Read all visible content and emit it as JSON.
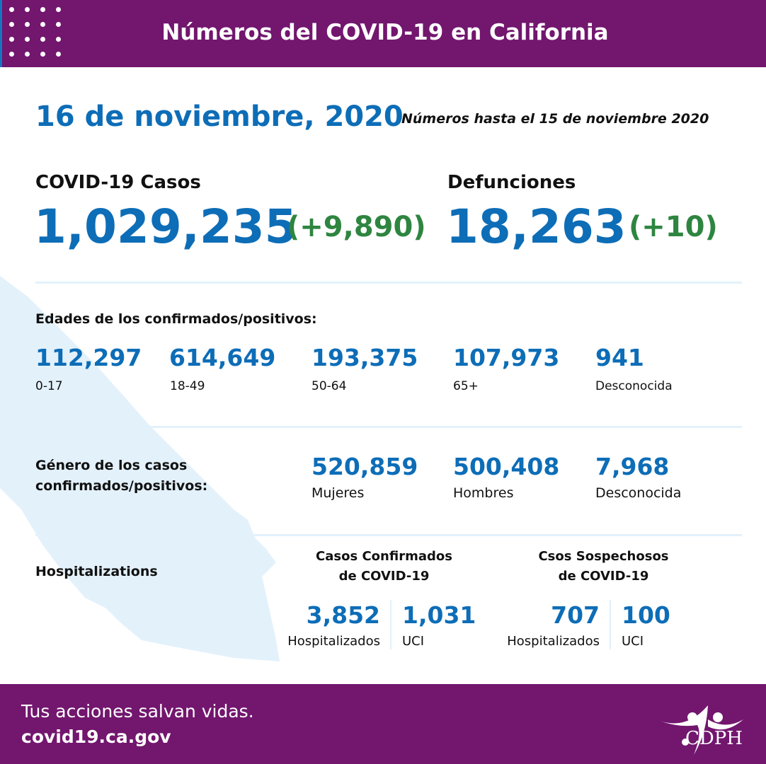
{
  "header": {
    "title": "Números del COVID-19 en California"
  },
  "date": "16 de noviembre, 2020",
  "as_of": "Números hasta el 15 de noviembre 2020",
  "cases": {
    "label": "COVID-19 Casos",
    "value": "1,029,235",
    "change": "(+9,890)"
  },
  "deaths": {
    "label": "Defunciones",
    "value": "18,263",
    "change": "(+10)"
  },
  "ages": {
    "title": "Edades de los confirmados/positivos:",
    "items": [
      {
        "value": "112,297",
        "label": "0-17"
      },
      {
        "value": "614,649",
        "label": "18-49"
      },
      {
        "value": "193,375",
        "label": "50-64"
      },
      {
        "value": "107,973",
        "label": "65+"
      },
      {
        "value": "941",
        "label": "Desconocida"
      }
    ]
  },
  "gender": {
    "title_line1": "Género de los casos",
    "title_line2": "confirmados/positivos:",
    "items": [
      {
        "value": "520,859",
        "label": "Mujeres"
      },
      {
        "value": "500,408",
        "label": "Hombres"
      },
      {
        "value": "7,968",
        "label": "Desconocida"
      }
    ]
  },
  "hosp": {
    "title": "Hospitalizations",
    "confirmed": {
      "title_line1": "Casos Confirmados",
      "title_line2": "de COVID-19",
      "hospitalized": "3,852",
      "hospitalized_label": "Hospitalizados",
      "icu": "1,031",
      "icu_label": "UCI"
    },
    "suspected": {
      "title_line1": "Csos Sospechosos",
      "title_line2": "de COVID-19",
      "hospitalized": "707",
      "hospitalized_label": "Hospitalizados",
      "icu": "100",
      "icu_label": "UCI"
    }
  },
  "footer": {
    "tagline": "Tus acciones salvan vidas.",
    "url": "covid19.ca.gov",
    "logo_text": "CDPH"
  },
  "colors": {
    "purple": "#72166e",
    "blue": "#0d6db7",
    "green": "#2e8540",
    "map": "#e3f1fb"
  }
}
